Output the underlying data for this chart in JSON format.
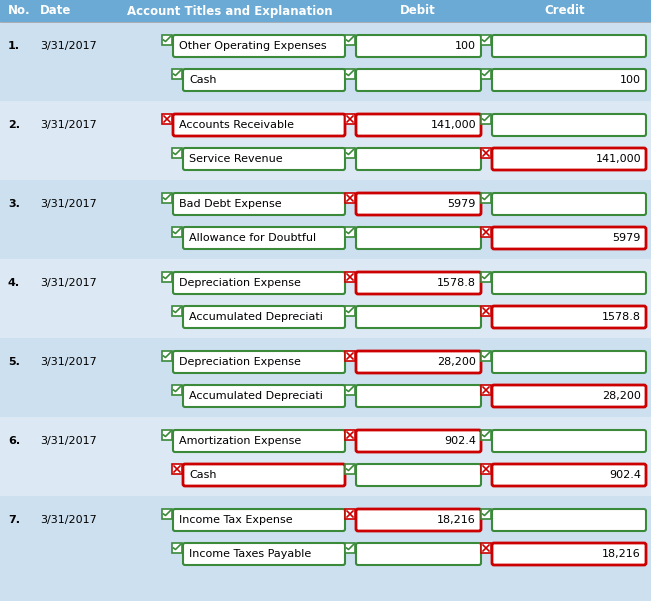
{
  "bg_color": "#cde0f0",
  "header_bg": "#6aaad4",
  "header_text_color": "#ffffff",
  "green_box_color": "#3a8a3a",
  "red_box_color": "#cc0000",
  "fig_w": 6.51,
  "fig_h": 6.01,
  "dpi": 100,
  "header_labels": [
    "No.",
    "Date",
    "Account Titles and Explanation",
    "Debit",
    "Credit"
  ],
  "rows": [
    {
      "no": "1.",
      "date": "3/31/2017",
      "entry1_account": "Other Operating Expenses",
      "entry1_debit": "100",
      "entry1_credit": "",
      "entry2_account": "Cash",
      "entry2_debit": "",
      "entry2_credit": "100",
      "e1_acct_red": false,
      "e1_debit_red": false,
      "e1_credit_red": false,
      "e2_acct_red": false,
      "e2_debit_red": false,
      "e2_credit_red": false,
      "no_red": false,
      "cb1_red": false,
      "cb2_red": false,
      "cb_debit1_red": false,
      "cb_credit1_red": false,
      "cb_debit2_red": false,
      "cb_credit2_red": false,
      "alt_bg": false
    },
    {
      "no": "2.",
      "date": "3/31/2017",
      "entry1_account": "Accounts Receivable",
      "entry1_debit": "141,000",
      "entry1_credit": "",
      "entry2_account": "Service Revenue",
      "entry2_debit": "",
      "entry2_credit": "141,000",
      "e1_acct_red": true,
      "e1_debit_red": true,
      "e1_credit_red": false,
      "e2_acct_red": false,
      "e2_debit_red": false,
      "e2_credit_red": true,
      "no_red": true,
      "cb1_red": true,
      "cb2_red": false,
      "cb_debit1_red": true,
      "cb_credit1_red": false,
      "cb_debit2_red": false,
      "cb_credit2_red": true,
      "alt_bg": true
    },
    {
      "no": "3.",
      "date": "3/31/2017",
      "entry1_account": "Bad Debt Expense",
      "entry1_debit": "5979",
      "entry1_credit": "",
      "entry2_account": "Allowance for Doubtful",
      "entry2_debit": "",
      "entry2_credit": "5979",
      "e1_acct_red": false,
      "e1_debit_red": true,
      "e1_credit_red": false,
      "e2_acct_red": false,
      "e2_debit_red": false,
      "e2_credit_red": true,
      "no_red": false,
      "cb1_red": false,
      "cb2_red": false,
      "cb_debit1_red": true,
      "cb_credit1_red": false,
      "cb_debit2_red": false,
      "cb_credit2_red": true,
      "alt_bg": false
    },
    {
      "no": "4.",
      "date": "3/31/2017",
      "entry1_account": "Depreciation Expense",
      "entry1_debit": "1578.8",
      "entry1_credit": "",
      "entry2_account": "Accumulated Depreciati",
      "entry2_debit": "",
      "entry2_credit": "1578.8",
      "e1_acct_red": false,
      "e1_debit_red": true,
      "e1_credit_red": false,
      "e2_acct_red": false,
      "e2_debit_red": false,
      "e2_credit_red": true,
      "no_red": false,
      "cb1_red": false,
      "cb2_red": false,
      "cb_debit1_red": true,
      "cb_credit1_red": false,
      "cb_debit2_red": false,
      "cb_credit2_red": true,
      "alt_bg": true
    },
    {
      "no": "5.",
      "date": "3/31/2017",
      "entry1_account": "Depreciation Expense",
      "entry1_debit": "28,200",
      "entry1_credit": "",
      "entry2_account": "Accumulated Depreciati",
      "entry2_debit": "",
      "entry2_credit": "28,200",
      "e1_acct_red": false,
      "e1_debit_red": true,
      "e1_credit_red": false,
      "e2_acct_red": false,
      "e2_debit_red": false,
      "e2_credit_red": true,
      "no_red": false,
      "cb1_red": false,
      "cb2_red": false,
      "cb_debit1_red": true,
      "cb_credit1_red": false,
      "cb_debit2_red": false,
      "cb_credit2_red": true,
      "alt_bg": false
    },
    {
      "no": "6.",
      "date": "3/31/2017",
      "entry1_account": "Amortization Expense",
      "entry1_debit": "902.4",
      "entry1_credit": "",
      "entry2_account": "Cash",
      "entry2_debit": "",
      "entry2_credit": "902.4",
      "e1_acct_red": false,
      "e1_debit_red": true,
      "e1_credit_red": false,
      "e2_acct_red": true,
      "e2_debit_red": false,
      "e2_credit_red": true,
      "no_red": false,
      "cb1_red": false,
      "cb2_red": true,
      "cb_debit1_red": true,
      "cb_credit1_red": false,
      "cb_debit2_red": false,
      "cb_credit2_red": true,
      "alt_bg": true
    },
    {
      "no": "7.",
      "date": "3/31/2017",
      "entry1_account": "Income Tax Expense",
      "entry1_debit": "18,216",
      "entry1_credit": "",
      "entry2_account": "Income Taxes Payable",
      "entry2_debit": "",
      "entry2_credit": "18,216",
      "e1_acct_red": false,
      "e1_debit_red": true,
      "e1_credit_red": false,
      "e2_acct_red": false,
      "e2_debit_red": false,
      "e2_credit_red": true,
      "no_red": false,
      "cb1_red": false,
      "cb2_red": false,
      "cb_debit1_red": true,
      "cb_credit1_red": false,
      "cb_debit2_red": false,
      "cb_credit2_red": true,
      "alt_bg": false
    }
  ]
}
